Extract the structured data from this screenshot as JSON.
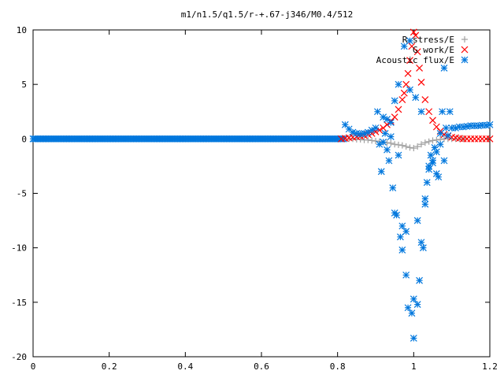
{
  "chart_data": {
    "type": "scatter",
    "title": "m1/n1.5/q1.5/r-+.67-j346/M0.4/512",
    "xlabel": "",
    "ylabel": "",
    "xlim": [
      0,
      1.2
    ],
    "ylim": [
      -20,
      10
    ],
    "x_ticks": [
      "0",
      "0.2",
      "0.4",
      "0.6",
      "0.8",
      "1",
      "1.2"
    ],
    "y_ticks": [
      "10",
      "5",
      "0",
      "-5",
      "-10",
      "-15",
      "-20"
    ],
    "grid": false,
    "legend_position": "top-right",
    "series": [
      {
        "name": "R stress/E",
        "marker": "plus",
        "color": "#a0a0a0",
        "x": [
          0.83,
          0.84,
          0.85,
          0.86,
          0.87,
          0.88,
          0.89,
          0.9,
          0.91,
          0.92,
          0.93,
          0.94,
          0.95,
          0.96,
          0.97,
          0.98,
          0.99,
          1.0,
          1.01,
          1.02,
          1.03,
          1.04,
          1.05,
          1.06,
          1.07,
          1.08,
          1.09,
          1.1,
          1.11,
          1.12,
          1.13
        ],
        "y": [
          0.0,
          0.0,
          -0.05,
          -0.05,
          -0.1,
          -0.1,
          -0.15,
          -0.2,
          -0.25,
          -0.3,
          -0.35,
          -0.4,
          -0.5,
          -0.55,
          -0.6,
          -0.7,
          -0.8,
          -0.85,
          -0.7,
          -0.5,
          -0.35,
          -0.25,
          -0.15,
          -0.1,
          -0.05,
          0.0,
          0.0,
          0.0,
          0.0,
          0.0,
          0.0
        ]
      },
      {
        "name": "G work/E",
        "marker": "cross",
        "color": "#ff0000",
        "x": [
          0.81,
          0.82,
          0.83,
          0.84,
          0.85,
          0.86,
          0.87,
          0.88,
          0.89,
          0.9,
          0.91,
          0.92,
          0.93,
          0.94,
          0.95,
          0.96,
          0.97,
          0.975,
          0.98,
          0.985,
          0.99,
          0.995,
          1.0,
          1.005,
          1.01,
          1.015,
          1.02,
          1.03,
          1.04,
          1.05,
          1.06,
          1.07,
          1.08,
          1.09,
          1.1,
          1.11,
          1.12,
          1.13,
          1.14,
          1.15,
          1.16,
          1.17,
          1.18,
          1.19,
          1.2
        ],
        "y": [
          0.0,
          0.05,
          0.1,
          0.15,
          0.2,
          0.25,
          0.3,
          0.4,
          0.5,
          0.65,
          0.8,
          1.0,
          1.3,
          1.6,
          2.0,
          2.7,
          3.6,
          4.2,
          5.0,
          6.0,
          7.2,
          8.5,
          9.8,
          9.5,
          8.0,
          6.5,
          5.2,
          3.6,
          2.5,
          1.7,
          1.1,
          0.7,
          0.4,
          0.25,
          0.15,
          0.1,
          0.05,
          0.0,
          0.0,
          0.0,
          0.0,
          0.0,
          0.0,
          0.0,
          0.0
        ]
      },
      {
        "name": "Acoustic flux/E",
        "marker": "asterisk",
        "color": "#0077dd",
        "x": [
          0.82,
          0.83,
          0.84,
          0.85,
          0.86,
          0.87,
          0.88,
          0.89,
          0.9,
          0.905,
          0.91,
          0.915,
          0.92,
          0.925,
          0.93,
          0.935,
          0.94,
          0.945,
          0.95,
          0.955,
          0.96,
          0.965,
          0.97,
          0.975,
          0.98,
          0.985,
          0.99,
          0.995,
          1.0,
          1.005,
          1.01,
          1.015,
          1.02,
          1.025,
          1.03,
          1.035,
          1.04,
          1.045,
          1.05,
          1.055,
          1.06,
          1.065,
          1.07,
          1.075,
          1.08,
          1.085,
          1.09,
          1.095,
          1.1,
          1.11,
          1.12,
          1.13,
          1.14,
          1.15,
          1.16,
          1.17,
          1.18,
          1.19,
          1.2,
          0.92,
          0.94,
          0.96,
          0.98,
          1.0,
          1.02,
          1.04,
          1.06,
          1.08,
          0.93,
          0.95,
          0.97,
          0.99,
          1.01,
          1.03,
          1.05,
          1.07
        ],
        "y": [
          1.3,
          0.9,
          0.6,
          0.5,
          0.45,
          0.5,
          0.6,
          0.8,
          1.0,
          2.5,
          -0.5,
          -3.0,
          2.0,
          0.5,
          -1.0,
          -2.0,
          1.5,
          -4.5,
          3.5,
          -7.0,
          5.0,
          -9.0,
          -10.2,
          8.5,
          -12.5,
          -15.5,
          4.5,
          -16.0,
          -18.3,
          3.8,
          -15.2,
          -13.0,
          2.5,
          -10.0,
          -6.0,
          -4.0,
          -2.5,
          -1.5,
          -2.0,
          -0.8,
          -1.2,
          -3.5,
          0.5,
          2.5,
          -2.0,
          1.0,
          0.3,
          2.5,
          1.0,
          1.0,
          1.1,
          1.1,
          1.15,
          1.2,
          1.2,
          1.2,
          1.25,
          1.25,
          1.3,
          -0.3,
          0.2,
          -1.5,
          -8.5,
          -14.7,
          -9.5,
          -2.8,
          -3.2,
          6.5,
          1.8,
          -6.8,
          -8.0,
          9.0,
          -7.5,
          -5.5,
          -2.2,
          -0.5
        ]
      }
    ]
  }
}
